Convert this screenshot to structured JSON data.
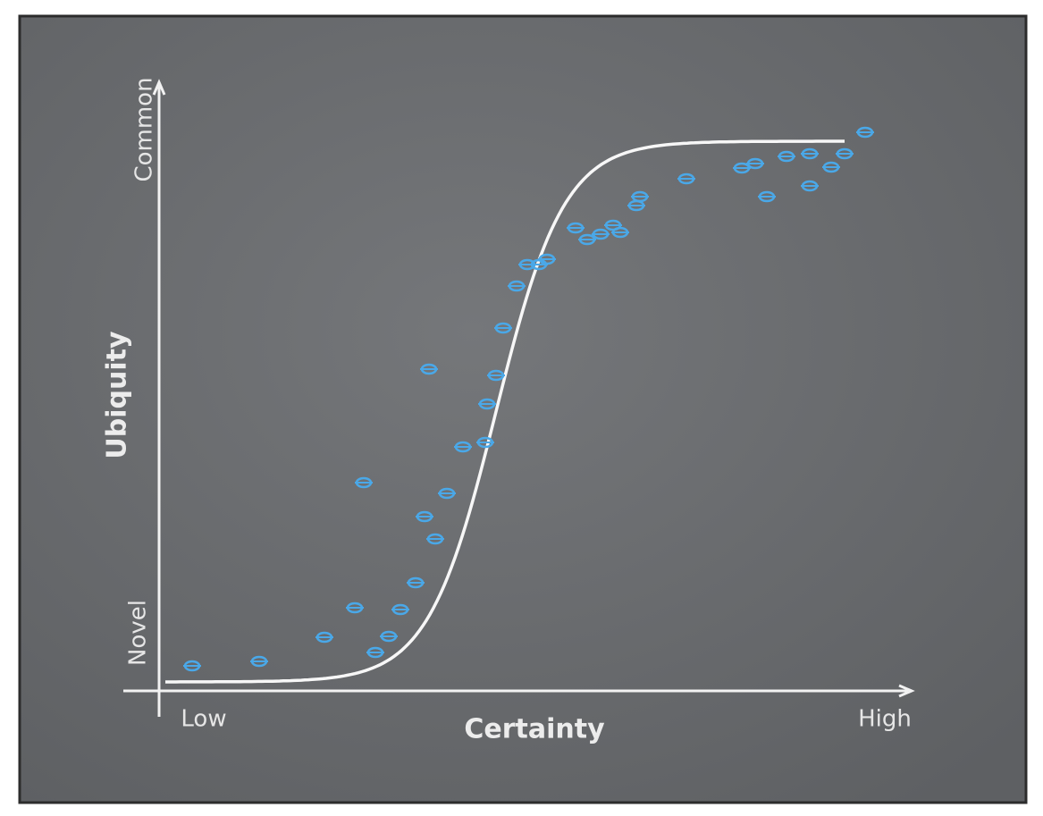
{
  "axes": {
    "y_title": "Ubiquity",
    "y_top": "Common",
    "y_bottom": "Novel",
    "x_title": "Certainty",
    "x_left": "Low",
    "x_right": "High"
  }
}
